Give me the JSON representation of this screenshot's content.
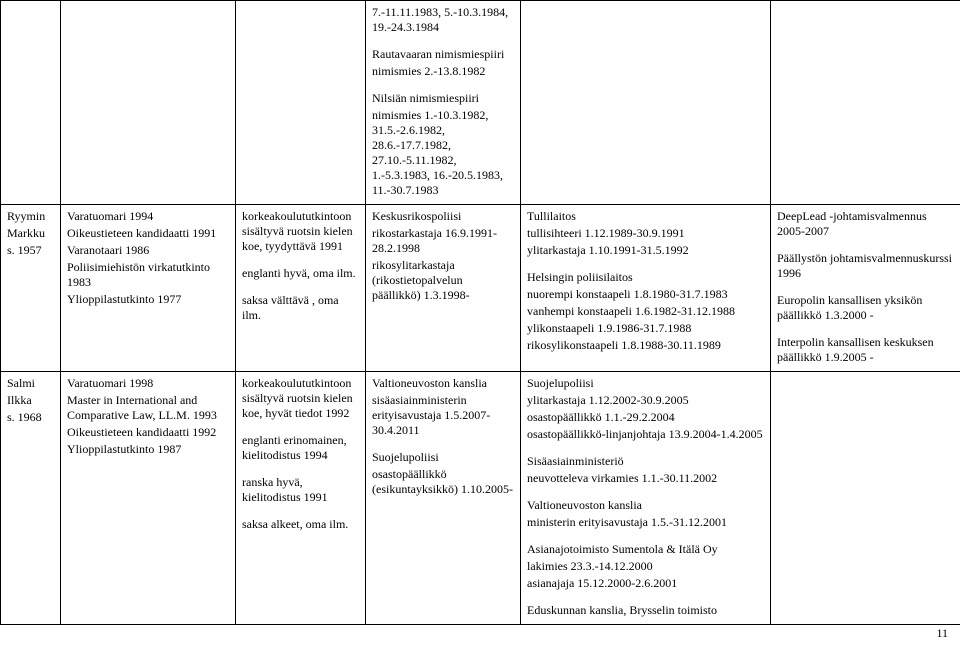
{
  "page_number": "11",
  "rows": [
    {
      "name": "",
      "edu": "",
      "lang": "",
      "job1": "7.-11.11.1983, 5.-10.3.1984, 19.-24.3.1984\n\nRautavaaran nimismiespiiri\nnimismies 2.-13.8.1982\n\nNilsiän nimismiespiiri\nnimismies 1.-10.3.1982, 31.5.-2.6.1982, 28.6.-17.7.1982, 27.10.-5.11.1982, 1.-5.3.1983, 16.-20.5.1983, 11.-30.7.1983",
      "job2": "",
      "extra": ""
    },
    {
      "name": "Ryymin\nMarkku\ns. 1957",
      "edu": "Varatuomari 1994\nOikeustieteen kandidaatti 1991\nVaranotaari 1986\nPoliisimiehistön virkatutkinto 1983\nYlioppilastutkinto 1977",
      "lang": "korkeakoulututkintoon sisältyvä ruotsin kielen koe, tyydyttävä 1991\n\nenglanti hyvä, oma ilm.\n\nsaksa välttävä , oma ilm.",
      "job1": "Keskusrikospoliisi\nrikostarkastaja 16.9.1991-28.2.1998\nrikosylitarkastaja (rikostietopalvelun päällikkö) 1.3.1998-",
      "job2": "Tullilaitos\ntullisihteeri 1.12.1989-30.9.1991\nylitarkastaja 1.10.1991-31.5.1992\n\nHelsingin poliisilaitos\nnuorempi konstaapeli 1.8.1980-31.7.1983\nvanhempi konstaapeli 1.6.1982-31.12.1988\nylikonstaapeli 1.9.1986-31.7.1988\nrikosylikonstaapeli 1.8.1988-30.11.1989",
      "extra": "DeepLead -johtamisvalmennus 2005-2007\n\nPäällystön johtamisvalmennuskurssi 1996\n\nEuropolin kansallisen yksikön päällikkö 1.3.2000 -\n\nInterpolin kansallisen keskuksen päällikkö 1.9.2005 -"
    },
    {
      "name": "Salmi\nIlkka\ns. 1968",
      "edu": "Varatuomari 1998\nMaster in International and Comparative Law, LL.M. 1993\nOikeustieteen kandidaatti 1992\nYlioppilastutkinto 1987",
      "lang": "korkeakoulututkintoon sisältyvä ruotsin kielen koe, hyvät tiedot 1992\n\nenglanti erinomainen, kielitodistus 1994\n\nranska hyvä, kielitodistus 1991\n\nsaksa alkeet, oma ilm.",
      "job1": "Valtioneuvoston kanslia\nsisäasiainministerin erityisavustaja 1.5.2007-30.4.2011\n\nSuojelupoliisi\nosastopäällikkö (esikuntayksikkö) 1.10.2005-",
      "job2": "Suojelupoliisi\nylitarkastaja 1.12.2002-30.9.2005\nosastopäällikkö 1.1.-29.2.2004\nosastopäällikkö-linjanjohtaja 13.9.2004-1.4.2005\n\nSisäasiainministeriö\nneuvotteleva virkamies 1.1.-30.11.2002\n\nValtioneuvoston kanslia\nministerin erityisavustaja 1.5.-31.12.2001\n\nAsianajotoimisto Sumentola & Itälä Oy\nlakimies 23.3.-14.12.2000\nasianajaja 15.12.2000-2.6.2001\n\nEduskunnan kanslia, Brysselin toimisto",
      "extra": ""
    }
  ]
}
